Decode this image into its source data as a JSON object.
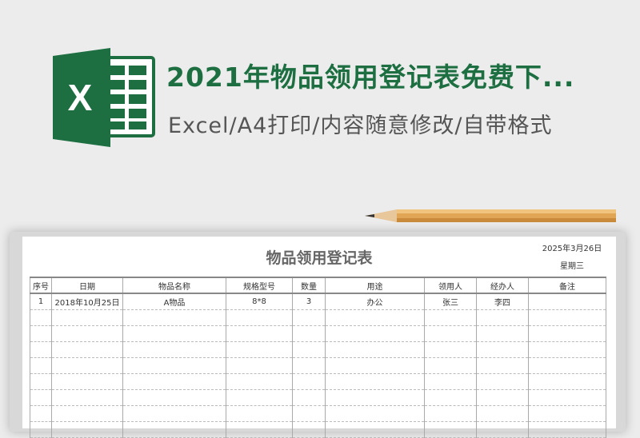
{
  "header": {
    "title": "2021年物品领用登记表免费下...",
    "subtitle": "Excel/A4打印/内容随意修改/自带格式",
    "logo_letter": "X"
  },
  "colors": {
    "brand": "#1d6f42"
  },
  "sheet": {
    "title": "物品领用登记表",
    "date": "2025年3月26日",
    "weekday": "星期三",
    "columns": [
      "序号",
      "日期",
      "物品名称",
      "规格型号",
      "数量",
      "用途",
      "领用人",
      "经办人",
      "备注"
    ],
    "rows": [
      [
        "1",
        "2018年10月25日",
        "A物品",
        "8*8",
        "3",
        "办公",
        "张三",
        "李四",
        ""
      ]
    ]
  }
}
